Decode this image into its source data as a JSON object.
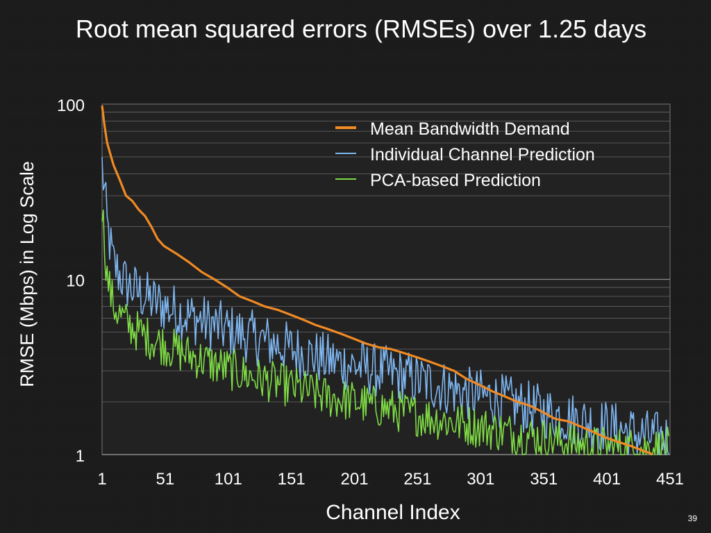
{
  "slide": {
    "title": "Root mean squared errors (RMSEs) over 1.25 days",
    "page_number": "39"
  },
  "chart_data": {
    "type": "line",
    "title": "Root mean squared errors (RMSEs) over 1.25 days",
    "xlabel": "Channel Index",
    "ylabel": "RMSE (Mbps) in Log Scale",
    "y_scale": "log",
    "ylim": [
      1,
      100
    ],
    "xlim": [
      1,
      451
    ],
    "x_ticks": [
      "1",
      "51",
      "101",
      "151",
      "201",
      "251",
      "301",
      "351",
      "401",
      "451"
    ],
    "y_ticks": [
      "100",
      "10",
      "1"
    ],
    "grid": true,
    "legend_position": "top-right",
    "series": [
      {
        "name": "Mean Bandwidth Demand",
        "color": "#f08a24",
        "x": [
          1,
          3,
          5,
          10,
          15,
          20,
          25,
          30,
          35,
          40,
          45,
          50,
          60,
          70,
          80,
          90,
          100,
          110,
          120,
          130,
          140,
          150,
          160,
          170,
          180,
          190,
          200,
          210,
          220,
          230,
          240,
          250,
          260,
          270,
          280,
          290,
          300,
          310,
          320,
          330,
          340,
          350,
          360,
          370,
          380,
          390,
          400,
          410,
          420,
          430,
          435,
          437
        ],
        "values": [
          98,
          75,
          60,
          45,
          37,
          30,
          28,
          25,
          23,
          20,
          17,
          15.5,
          14,
          12.5,
          11,
          10,
          9,
          8,
          7.5,
          7,
          6.7,
          6.3,
          5.9,
          5.5,
          5.2,
          4.9,
          4.6,
          4.3,
          4.1,
          4.0,
          3.8,
          3.6,
          3.4,
          3.2,
          3.0,
          2.7,
          2.5,
          2.3,
          2.15,
          2.0,
          1.9,
          1.75,
          1.6,
          1.55,
          1.45,
          1.35,
          1.25,
          1.18,
          1.12,
          1.05,
          1.02,
          1.0
        ]
      },
      {
        "name": "Individual Channel Prediction",
        "color": "#7fb7f2",
        "x": [
          1,
          3,
          5,
          10,
          15,
          20,
          30,
          40,
          50,
          60,
          70,
          80,
          90,
          100,
          110,
          120,
          130,
          140,
          150,
          160,
          170,
          180,
          190,
          200,
          210,
          220,
          230,
          240,
          250,
          260,
          270,
          280,
          290,
          300,
          310,
          320,
          330,
          340,
          350,
          360,
          370,
          380,
          390,
          400,
          410,
          420,
          430,
          440,
          450
        ],
        "values": [
          40,
          28,
          18,
          11,
          9.5,
          8.5,
          7.5,
          6.8,
          6.3,
          5.9,
          5.5,
          5.2,
          4.9,
          4.6,
          4.4,
          4.2,
          4.0,
          3.8,
          3.6,
          3.4,
          3.25,
          3.1,
          3.0,
          2.9,
          2.8,
          2.7,
          2.6,
          2.5,
          2.4,
          2.3,
          2.2,
          2.1,
          2.0,
          1.95,
          1.9,
          1.8,
          1.72,
          1.65,
          1.58,
          1.52,
          1.46,
          1.4,
          1.35,
          1.3,
          1.25,
          1.2,
          1.15,
          1.12,
          1.1
        ],
        "jitter": 0.45
      },
      {
        "name": "PCA-based Prediction",
        "color": "#7fdc45",
        "x": [
          1,
          3,
          5,
          10,
          15,
          20,
          30,
          40,
          50,
          60,
          70,
          80,
          90,
          100,
          110,
          120,
          130,
          140,
          150,
          160,
          170,
          180,
          190,
          200,
          210,
          220,
          230,
          240,
          250,
          260,
          270,
          280,
          290,
          300,
          310,
          320,
          330,
          340,
          350,
          360,
          370,
          380,
          390,
          400,
          410,
          420,
          430,
          440,
          450
        ],
        "values": [
          24,
          15,
          9.5,
          6.5,
          5.8,
          5.2,
          4.6,
          4.2,
          3.9,
          3.6,
          3.4,
          3.2,
          3.0,
          2.85,
          2.7,
          2.55,
          2.45,
          2.35,
          2.25,
          2.15,
          2.05,
          1.95,
          1.9,
          1.85,
          1.78,
          1.72,
          1.66,
          1.6,
          1.55,
          1.5,
          1.45,
          1.4,
          1.36,
          1.32,
          1.28,
          1.24,
          1.2,
          1.17,
          1.14,
          1.1,
          1.08,
          1.05,
          1.03,
          1.01,
          1.0,
          1.0,
          1.0,
          1.0,
          1.0
        ],
        "jitter": 0.35
      }
    ]
  }
}
